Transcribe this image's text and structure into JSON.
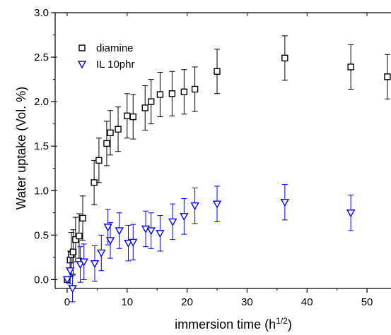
{
  "chart_data": {
    "type": "scatter",
    "title": "",
    "xlabel": "immersion time (h",
    "xlabel_sup": "1/2",
    "xlabel_end": ")",
    "ylabel": "Water uptake (Vol. %)",
    "xlim": [
      -2,
      54
    ],
    "ylim": [
      -0.1,
      3.0
    ],
    "xticks": [
      0,
      10,
      20,
      30,
      40,
      50
    ],
    "xtick_labels": [
      "0",
      "10",
      "20",
      "30",
      "40",
      "50"
    ],
    "yticks": [
      0.0,
      0.5,
      1.0,
      1.5,
      2.0,
      2.5,
      3.0
    ],
    "ytick_labels": [
      "0.0",
      "0.5",
      "1.0",
      "1.5",
      "2.0",
      "2.5",
      "3.0"
    ],
    "grid": false,
    "legend_position": "top-left",
    "series": [
      {
        "name": "diamine",
        "marker": "square",
        "color": "#000000",
        "points": [
          {
            "x": 0.0,
            "y": 0.0,
            "err": 0.0
          },
          {
            "x": 0.5,
            "y": 0.22,
            "err": 0.1
          },
          {
            "x": 0.7,
            "y": 0.28,
            "err": 0.25
          },
          {
            "x": 1.0,
            "y": 0.31,
            "err": 0.25
          },
          {
            "x": 1.4,
            "y": 0.45,
            "err": 0.25
          },
          {
            "x": 2.0,
            "y": 0.49,
            "err": 0.25
          },
          {
            "x": 2.6,
            "y": 0.69,
            "err": 0.25
          },
          {
            "x": 4.5,
            "y": 1.09,
            "err": 0.25
          },
          {
            "x": 5.3,
            "y": 1.34,
            "err": 0.25
          },
          {
            "x": 6.6,
            "y": 1.53,
            "err": 0.25
          },
          {
            "x": 7.2,
            "y": 1.65,
            "err": 0.25
          },
          {
            "x": 8.5,
            "y": 1.69,
            "err": 0.25
          },
          {
            "x": 10.0,
            "y": 1.84,
            "err": 0.25
          },
          {
            "x": 11.0,
            "y": 1.83,
            "err": 0.25
          },
          {
            "x": 13.0,
            "y": 1.93,
            "err": 0.25
          },
          {
            "x": 14.0,
            "y": 2.0,
            "err": 0.25
          },
          {
            "x": 15.5,
            "y": 2.08,
            "err": 0.25
          },
          {
            "x": 17.5,
            "y": 2.09,
            "err": 0.25
          },
          {
            "x": 19.5,
            "y": 2.11,
            "err": 0.25
          },
          {
            "x": 21.3,
            "y": 2.14,
            "err": 0.25
          },
          {
            "x": 25.0,
            "y": 2.34,
            "err": 0.25
          },
          {
            "x": 36.3,
            "y": 2.49,
            "err": 0.25
          },
          {
            "x": 47.3,
            "y": 2.39,
            "err": 0.25
          },
          {
            "x": 53.4,
            "y": 2.28,
            "err": 0.25
          }
        ]
      },
      {
        "name": "IL 10phr",
        "marker": "triangle-down",
        "color": "#0000ff",
        "points": [
          {
            "x": 0.0,
            "y": 0.0,
            "err": 0.0
          },
          {
            "x": 0.5,
            "y": 0.1,
            "err": 0.15
          },
          {
            "x": 0.9,
            "y": -0.1,
            "err": 0.15
          },
          {
            "x": 2.2,
            "y": 0.17,
            "err": 0.2
          },
          {
            "x": 2.8,
            "y": 0.2,
            "err": 0.2
          },
          {
            "x": 4.6,
            "y": 0.18,
            "err": 0.2
          },
          {
            "x": 5.7,
            "y": 0.3,
            "err": 0.2
          },
          {
            "x": 6.8,
            "y": 0.59,
            "err": 0.2
          },
          {
            "x": 7.2,
            "y": 0.44,
            "err": 0.2
          },
          {
            "x": 8.7,
            "y": 0.55,
            "err": 0.2
          },
          {
            "x": 10.2,
            "y": 0.41,
            "err": 0.2
          },
          {
            "x": 11.0,
            "y": 0.42,
            "err": 0.2
          },
          {
            "x": 13.1,
            "y": 0.57,
            "err": 0.2
          },
          {
            "x": 14.0,
            "y": 0.55,
            "err": 0.2
          },
          {
            "x": 15.5,
            "y": 0.52,
            "err": 0.2
          },
          {
            "x": 17.6,
            "y": 0.65,
            "err": 0.2
          },
          {
            "x": 19.5,
            "y": 0.71,
            "err": 0.2
          },
          {
            "x": 21.3,
            "y": 0.83,
            "err": 0.2
          },
          {
            "x": 25.0,
            "y": 0.85,
            "err": 0.2
          },
          {
            "x": 36.3,
            "y": 0.87,
            "err": 0.2
          },
          {
            "x": 47.3,
            "y": 0.75,
            "err": 0.2
          }
        ]
      }
    ]
  }
}
